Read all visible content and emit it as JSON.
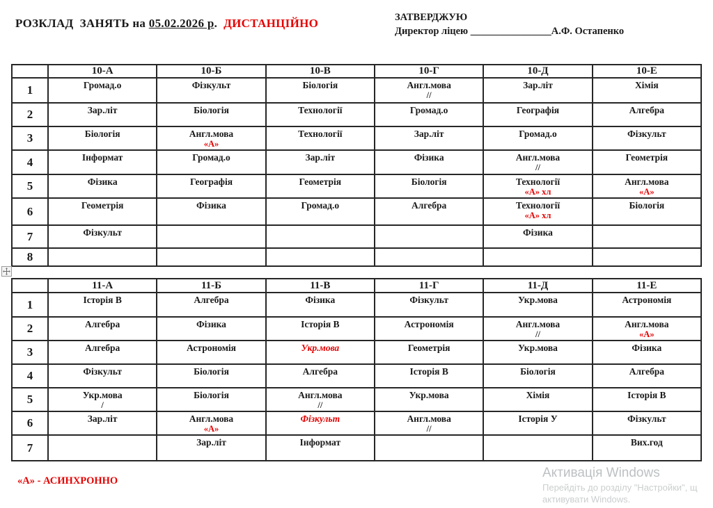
{
  "page": {
    "title": {
      "prefix": "РОЗКЛАД  ЗАНЯТЬ на ",
      "date": "05.02.2026 р",
      "dot": ".",
      "mode": "ДИСТАНЦІЙНО"
    },
    "approval": {
      "heading": "ЗАТВЕРДЖУЮ",
      "role": "Директор ліцею ",
      "blank": "________________",
      "name": "А.Ф. Остапенко"
    },
    "footnote": "«А» - АСИНХРОННО",
    "watermark": {
      "title": "Активація Windows",
      "line2": "Перейдіть до розділу \"Настройки\", щ",
      "line3": "активувати Windows."
    },
    "colors": {
      "accent_red": "#e60000",
      "text": "#1a1a1a",
      "watermark_gray": "#c5c8ca"
    }
  },
  "tables": [
    {
      "name": "grade-10",
      "header": [
        "",
        "10-А",
        "10-Б",
        "10-В",
        "10-Г",
        "10-Д",
        "10-Е"
      ],
      "rows": [
        {
          "num": "1",
          "cells": [
            {
              "t": "Громад.о"
            },
            {
              "t": "Фізкульт"
            },
            {
              "t": "Біологія"
            },
            {
              "t": "Англ.мова",
              "sub": "//"
            },
            {
              "t": "Зар.літ"
            },
            {
              "t": "Хімія"
            }
          ]
        },
        {
          "num": "2",
          "cells": [
            {
              "t": "Зар.літ"
            },
            {
              "t": "Біологія"
            },
            {
              "t": "Технології"
            },
            {
              "t": "Громад.о"
            },
            {
              "t": "Географія"
            },
            {
              "t": "Алгебра"
            }
          ]
        },
        {
          "num": "3",
          "cells": [
            {
              "t": "Біологія"
            },
            {
              "t": "Англ.мова",
              "sub": "«А»",
              "subRed": true
            },
            {
              "t": "Технології"
            },
            {
              "t": "Зар.літ"
            },
            {
              "t": "Громад.о"
            },
            {
              "t": "Фізкульт"
            }
          ]
        },
        {
          "num": "4",
          "cells": [
            {
              "t": "Інформат"
            },
            {
              "t": "Громад.о"
            },
            {
              "t": "Зар.літ"
            },
            {
              "t": "Фізика"
            },
            {
              "t": "Англ.мова",
              "sub": "//"
            },
            {
              "t": "Геометрія"
            }
          ]
        },
        {
          "num": "5",
          "cells": [
            {
              "t": "Фізика"
            },
            {
              "t": "Географія"
            },
            {
              "t": "Геометрія"
            },
            {
              "t": "Біологія"
            },
            {
              "t": "Технології",
              "sub": "«А» хл",
              "subRed": true
            },
            {
              "t": "Англ.мова",
              "sub": "«А»",
              "subRed": true
            }
          ]
        },
        {
          "num": "6",
          "cells": [
            {
              "t": "Геометрія"
            },
            {
              "t": "Фізика"
            },
            {
              "t": "Громад.о"
            },
            {
              "t": "Алгебра"
            },
            {
              "t": "Технології",
              "sub": "«А» хл",
              "subRed": true
            },
            {
              "t": "Біологія"
            }
          ]
        },
        {
          "num": "7",
          "cells": [
            {
              "t": "Фізкульт"
            },
            {},
            {},
            {},
            {
              "t": "Фізика"
            },
            {}
          ]
        },
        {
          "num": "8",
          "cells": [
            {},
            {},
            {},
            {},
            {},
            {}
          ]
        }
      ]
    },
    {
      "name": "grade-11",
      "header": [
        "",
        "11-А",
        "11-Б",
        "11-В",
        "11-Г",
        "11-Д",
        "11-Е"
      ],
      "rows": [
        {
          "num": "1",
          "cells": [
            {
              "t": "Історія В"
            },
            {
              "t": "Алгебра"
            },
            {
              "t": "Фізика"
            },
            {
              "t": "Фізкульт"
            },
            {
              "t": "Укр.мова"
            },
            {
              "t": "Астрономія"
            }
          ]
        },
        {
          "num": "2",
          "cells": [
            {
              "t": "Алгебра"
            },
            {
              "t": "Фізика"
            },
            {
              "t": "Історія В"
            },
            {
              "t": "Астрономія"
            },
            {
              "t": "Англ.мова",
              "sub": "//"
            },
            {
              "t": "Англ.мова",
              "sub": "«А»",
              "subRed": true
            }
          ]
        },
        {
          "num": "3",
          "cells": [
            {
              "t": "Алгебра"
            },
            {
              "t": "Астрономія"
            },
            {
              "t": "Укр.мова",
              "red": true
            },
            {
              "t": "Геометрія"
            },
            {
              "t": "Укр.мова"
            },
            {
              "t": "Фізика"
            }
          ]
        },
        {
          "num": "4",
          "cells": [
            {
              "t": "Фізкульт"
            },
            {
              "t": "Біологія"
            },
            {
              "t": "Алгебра"
            },
            {
              "t": "Історія В"
            },
            {
              "t": "Біологія"
            },
            {
              "t": "Алгебра"
            }
          ]
        },
        {
          "num": "5",
          "cells": [
            {
              "t": "Укр.мова",
              "sub": "/"
            },
            {
              "t": "Біологія"
            },
            {
              "t": "Англ.мова",
              "sub": "//"
            },
            {
              "t": "Укр.мова"
            },
            {
              "t": "Хімія"
            },
            {
              "t": "Історія В"
            }
          ]
        },
        {
          "num": "6",
          "cells": [
            {
              "t": "Зар.літ"
            },
            {
              "t": "Англ.мова",
              "sub": "«А»",
              "subRed": true
            },
            {
              "t": "Фізкульт",
              "red": true
            },
            {
              "t": "Англ.мова",
              "sub": "//"
            },
            {
              "t": "Історія У"
            },
            {
              "t": "Фізкульт"
            }
          ]
        },
        {
          "num": "7",
          "cells": [
            {},
            {
              "t": "Зар.літ"
            },
            {
              "t": "Інформат"
            },
            {},
            {},
            {
              "t": "Вих.год"
            }
          ]
        }
      ]
    }
  ]
}
